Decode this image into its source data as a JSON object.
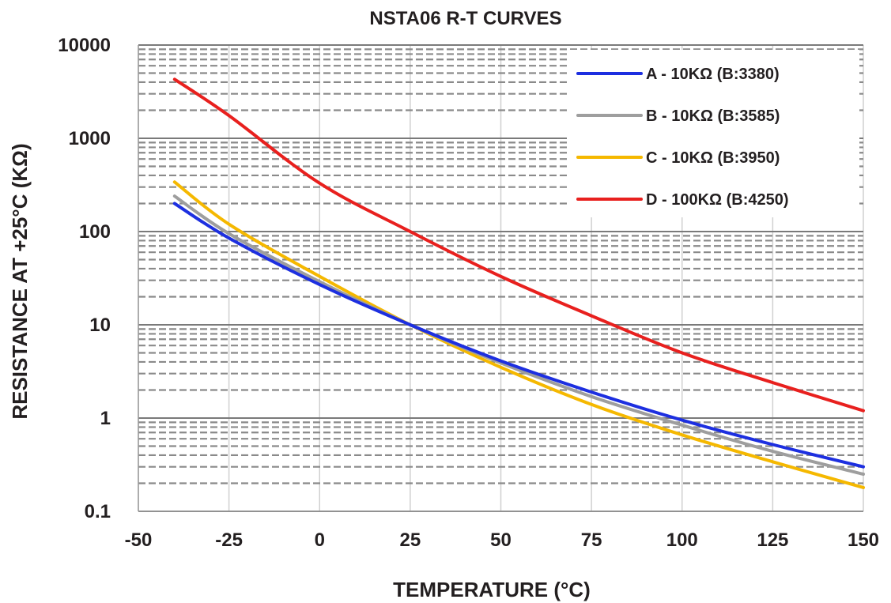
{
  "chart_data": {
    "type": "line",
    "title": "NSTA06 R-T CURVES",
    "xlabel": "TEMPERATURE (°C)",
    "ylabel": "RESISTANCE AT +25°C (KΩ)",
    "xlim": [
      -50,
      150
    ],
    "ylim": [
      0.1,
      10000
    ],
    "yscale": "log",
    "grid": true,
    "legend_position": "top-right",
    "x_ticks": [
      "-50",
      "-25",
      "0",
      "25",
      "50",
      "75",
      "100",
      "125",
      "150"
    ],
    "y_ticks": [
      "0.1",
      "1",
      "10",
      "100",
      "1000",
      "10000"
    ],
    "x": [
      -40,
      -25,
      0,
      25,
      50,
      75,
      100,
      125,
      150
    ],
    "series": [
      {
        "name": "A - 10KΩ (B:3380)",
        "color": "#1d2fe0",
        "values": [
          200,
          85,
          27,
          10,
          4.1,
          1.9,
          0.95,
          0.52,
          0.3
        ]
      },
      {
        "name": "B - 10KΩ (B:3585)",
        "color": "#9e9e9e",
        "values": [
          240,
          95,
          29,
          10,
          3.9,
          1.7,
          0.84,
          0.44,
          0.25
        ]
      },
      {
        "name": "C - 10KΩ (B:3950)",
        "color": "#f5b800",
        "values": [
          340,
          120,
          33,
          10,
          3.5,
          1.4,
          0.66,
          0.34,
          0.18
        ]
      },
      {
        "name": "D - 100KΩ (B:4250)",
        "color": "#e8201e",
        "values": [
          4300,
          1750,
          330,
          100,
          33,
          12.5,
          5,
          2.4,
          1.2
        ]
      }
    ]
  }
}
